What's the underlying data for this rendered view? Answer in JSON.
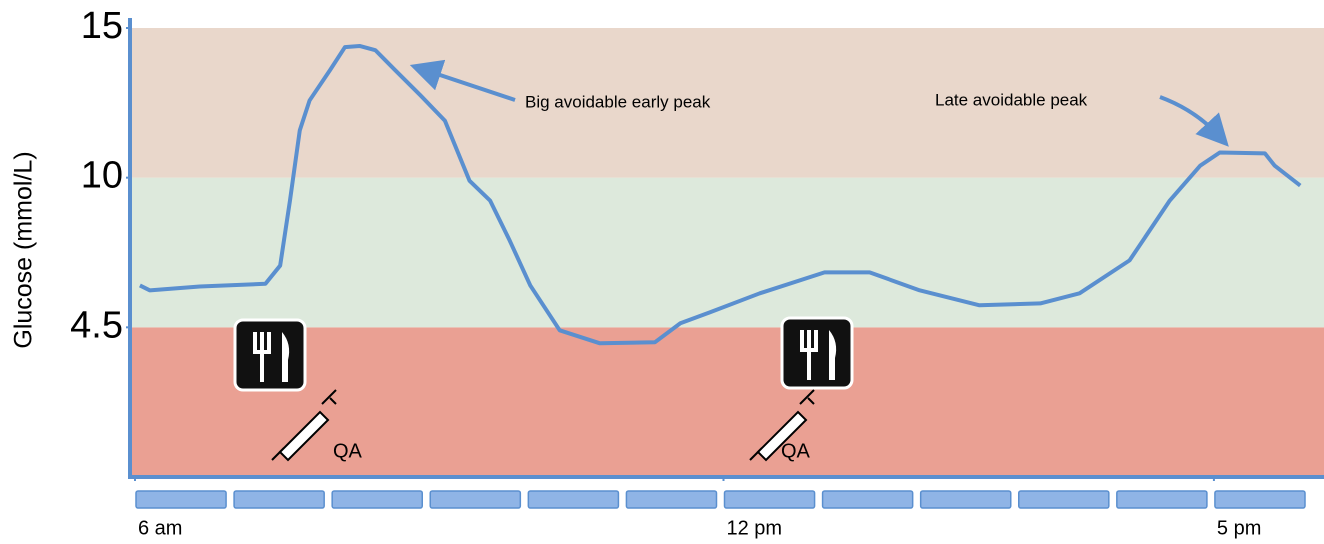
{
  "chart_data": {
    "type": "line",
    "y_label": "Glucose (mmol/L)",
    "x": [
      6.05,
      6.15,
      6.66,
      7.33,
      7.48,
      7.58,
      7.68,
      7.78,
      7.99,
      8.14,
      8.29,
      8.45,
      8.65,
      8.91,
      9.16,
      9.41,
      9.62,
      9.82,
      10.03,
      10.33,
      10.74,
      11.3,
      11.56,
      11.86,
      12.37,
      13.03,
      13.49,
      14.0,
      14.61,
      15.23,
      15.63,
      16.14,
      16.55,
      16.86,
      17.06,
      17.52,
      17.62,
      17.88
    ],
    "series": [
      {
        "color": "#5a8fcf",
        "values": [
          6.04,
          5.86,
          6.0,
          6.1,
          6.77,
          9.16,
          11.58,
          12.58,
          13.6,
          14.36,
          14.4,
          14.26,
          13.6,
          12.75,
          11.9,
          9.89,
          9.16,
          7.69,
          6.04,
          4.41,
          4.02,
          4.05,
          4.65,
          5.05,
          5.75,
          6.52,
          6.52,
          5.86,
          5.31,
          5.38,
          5.75,
          6.96,
          9.16,
          10.4,
          10.84,
          10.81,
          10.4,
          9.71
        ]
      }
    ],
    "xlim": [
      6,
      18
    ],
    "xticks": [
      {
        "value": 6,
        "label": "6 am"
      },
      {
        "value": 12,
        "label": "12 pm"
      },
      {
        "value": 17,
        "label": "5 pm"
      }
    ],
    "ylim": [
      0,
      15
    ],
    "yticks": [
      4.5,
      10,
      15
    ],
    "band_colors": [
      "#eaa093",
      "#dde9dc",
      "#e9d7cb"
    ],
    "axis_color": "#5a8fcf",
    "annotations": [
      {
        "text": "Big avoidable early peak"
      },
      {
        "text": "Late avoidable peak"
      }
    ],
    "dose_labels": [
      "QA",
      "QA"
    ]
  }
}
